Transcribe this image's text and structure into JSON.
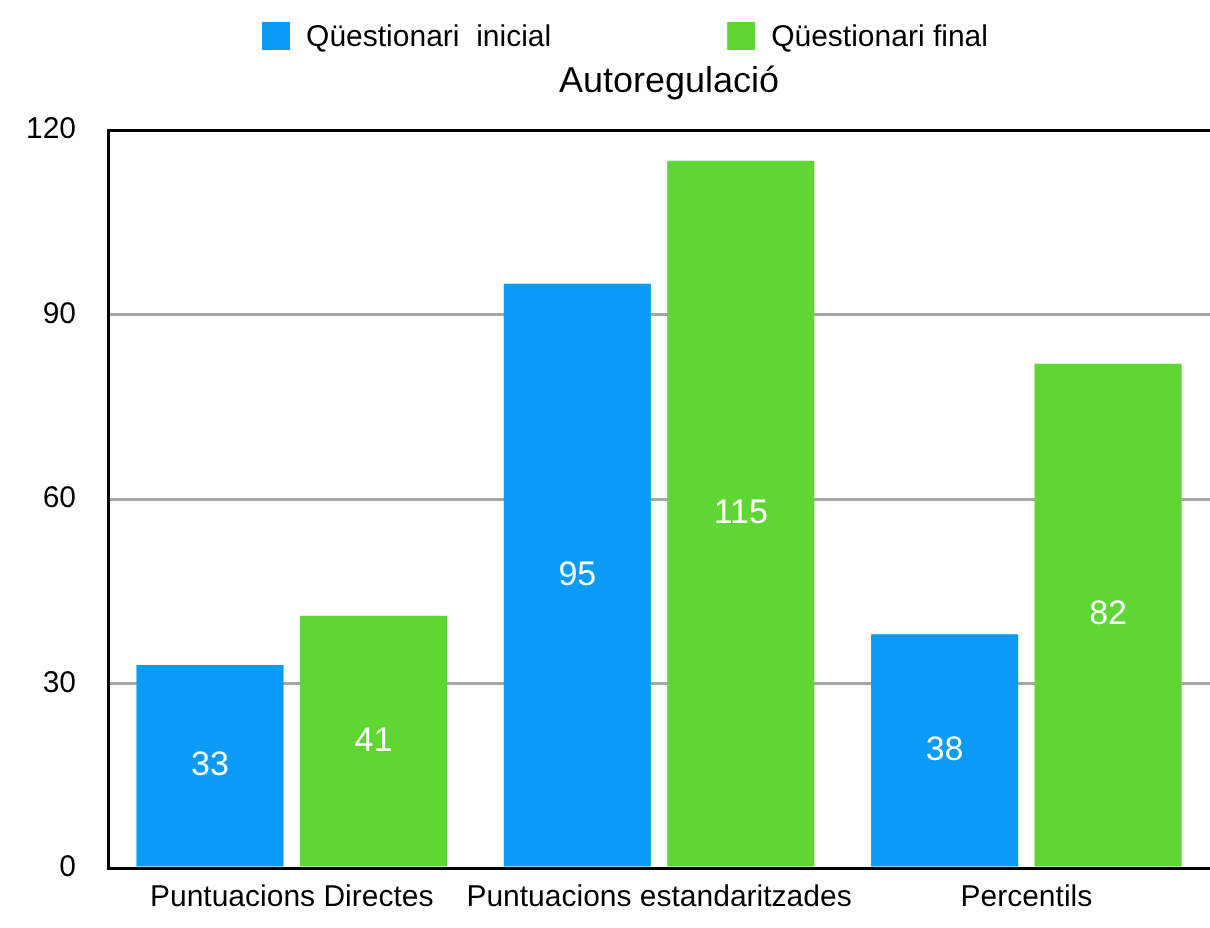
{
  "chart_data": {
    "type": "bar",
    "title": "Autoregulació",
    "categories": [
      "Puntuacions Directes",
      "Puntuacions estandaritzades",
      "Percentils"
    ],
    "series": [
      {
        "name": "Qüestionari  inicial",
        "color": "#0a9bf6",
        "values": [
          33,
          95,
          38
        ]
      },
      {
        "name": "Qüestionari final",
        "color": "#5ed634",
        "values": [
          41,
          115,
          82
        ]
      }
    ],
    "ylim": [
      0,
      120
    ],
    "yticks": [
      0,
      30,
      60,
      90,
      120
    ],
    "grid": "y",
    "legend": "top",
    "data_labels": true
  }
}
